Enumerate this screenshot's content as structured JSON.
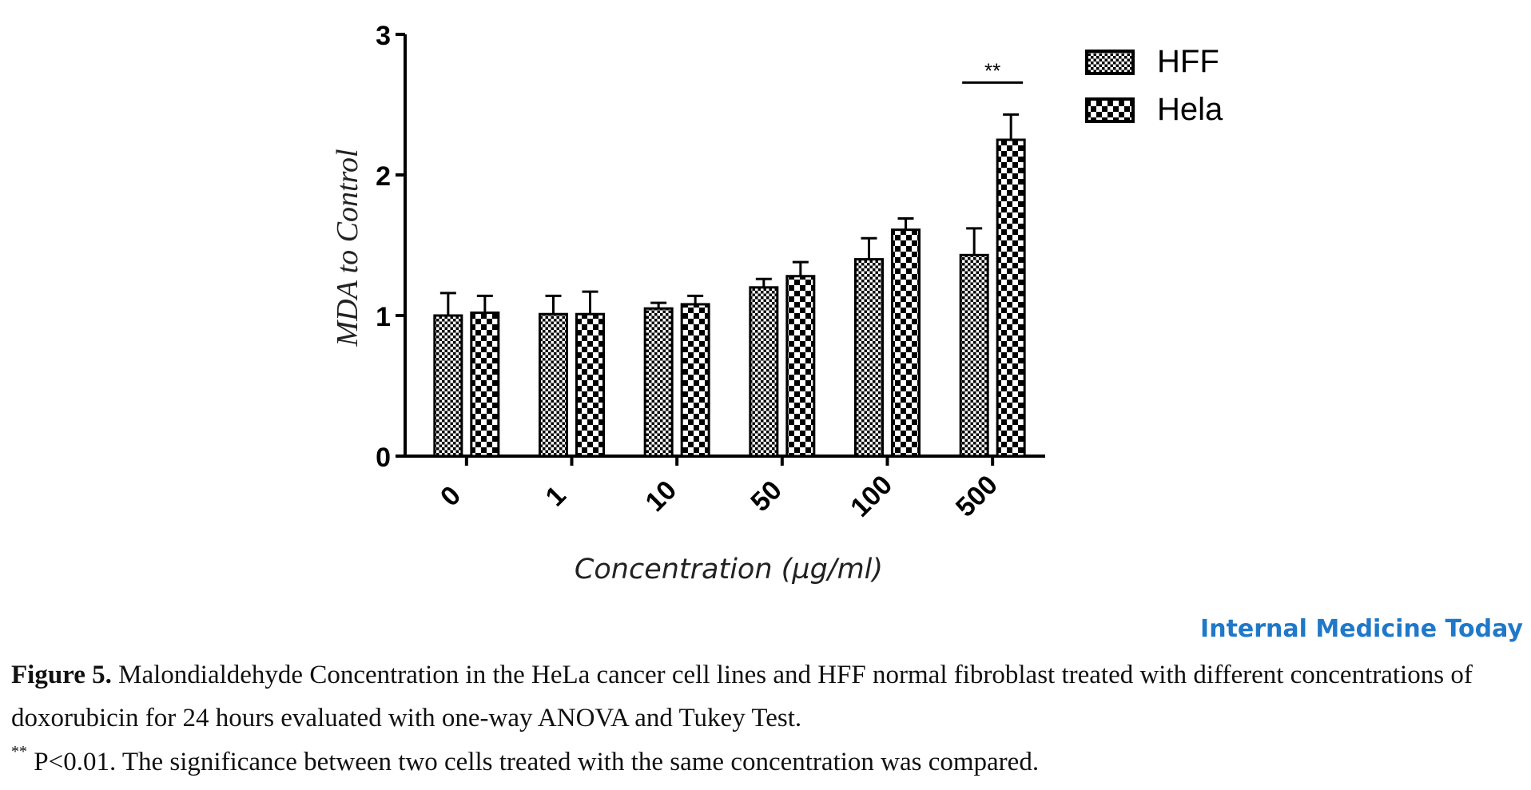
{
  "chart_data": {
    "type": "bar",
    "categories": [
      "0",
      "1",
      "10",
      "50",
      "100",
      "500"
    ],
    "series": [
      {
        "name": "HFF",
        "pattern": "fine-checker",
        "values": [
          1.0,
          1.01,
          1.05,
          1.2,
          1.4,
          1.43
        ],
        "errors": [
          0.16,
          0.13,
          0.04,
          0.06,
          0.15,
          0.19
        ]
      },
      {
        "name": "Hela",
        "pattern": "coarse-checker",
        "values": [
          1.02,
          1.01,
          1.08,
          1.28,
          1.61,
          2.25
        ],
        "errors": [
          0.12,
          0.16,
          0.06,
          0.1,
          0.08,
          0.18
        ]
      }
    ],
    "xlabel": "Concentration (µg/ml)",
    "ylabel": "MDA to Control",
    "ylim": [
      0,
      3
    ],
    "yticks": [
      "0",
      "1",
      "2",
      "3"
    ],
    "grid": false,
    "legend_position": "top-right",
    "annotations": [
      {
        "text": "**",
        "category": "500"
      }
    ]
  },
  "brand": "Internal Medicine Today",
  "caption": {
    "label": "Figure 5.",
    "text": " Malondialdehyde Concentration in the HeLa cancer cell lines and HFF normal fibroblast treated with different concentrations of doxorubicin for 24 hours evaluated with one-way ANOVA and Tukey Test."
  },
  "note": {
    "marker": "**",
    "text": " P<0.01. The significance between two cells treated with the same concentration was compared."
  },
  "colors": {
    "ink": "#000000",
    "brand": "#1f78c8"
  }
}
